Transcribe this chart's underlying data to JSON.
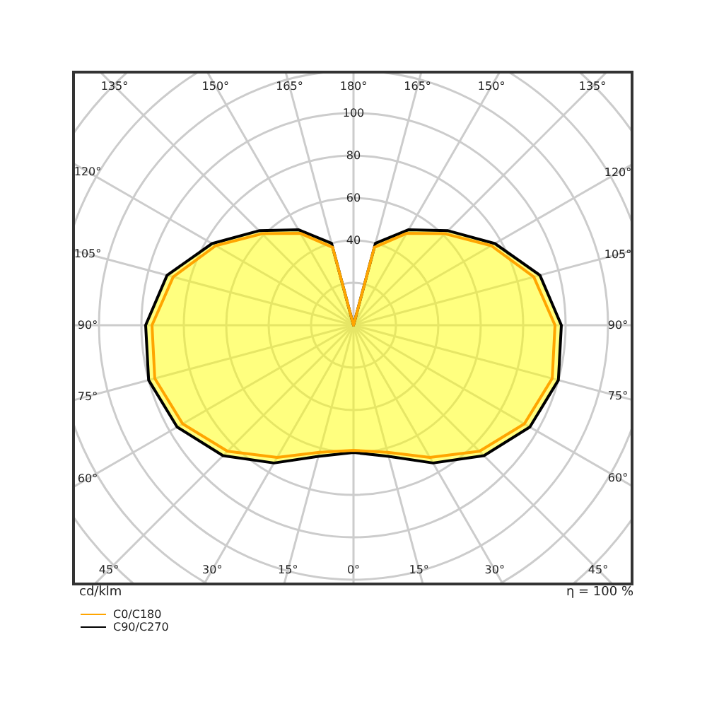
{
  "chart_data": {
    "type": "radar",
    "categories": [
      "180°",
      "165°",
      "150°",
      "135°",
      "120°",
      "105°",
      "90°",
      "75°",
      "60°",
      "45°",
      "30°",
      "15°",
      "0°",
      "15°",
      "30°",
      "45°",
      "60°",
      "75°",
      "90°",
      "105°",
      "120°",
      "135°",
      "150°",
      "165°"
    ],
    "series": [
      {
        "name": "C0/C180",
        "color": "#ffa500",
        "values": [
          0,
          38,
          50,
          61,
          75,
          88,
          95,
          97,
          93,
          84,
          72,
          62,
          59,
          62,
          72,
          84,
          93,
          97,
          95,
          88,
          75,
          61,
          50,
          38
        ]
      },
      {
        "name": "C90/C270",
        "color": "#000000",
        "values": [
          0,
          40,
          52,
          63,
          77,
          91,
          98,
          100,
          96,
          87,
          75,
          64,
          60,
          64,
          75,
          87,
          96,
          100,
          98,
          91,
          77,
          63,
          52,
          40
        ]
      }
    ],
    "ylim": [
      0,
      180
    ],
    "yticks": [
      40,
      60,
      80,
      100
    ],
    "grid": true,
    "legend": "bottom left",
    "annotations": [
      "cd/klm",
      "η = 100 %"
    ]
  }
}
